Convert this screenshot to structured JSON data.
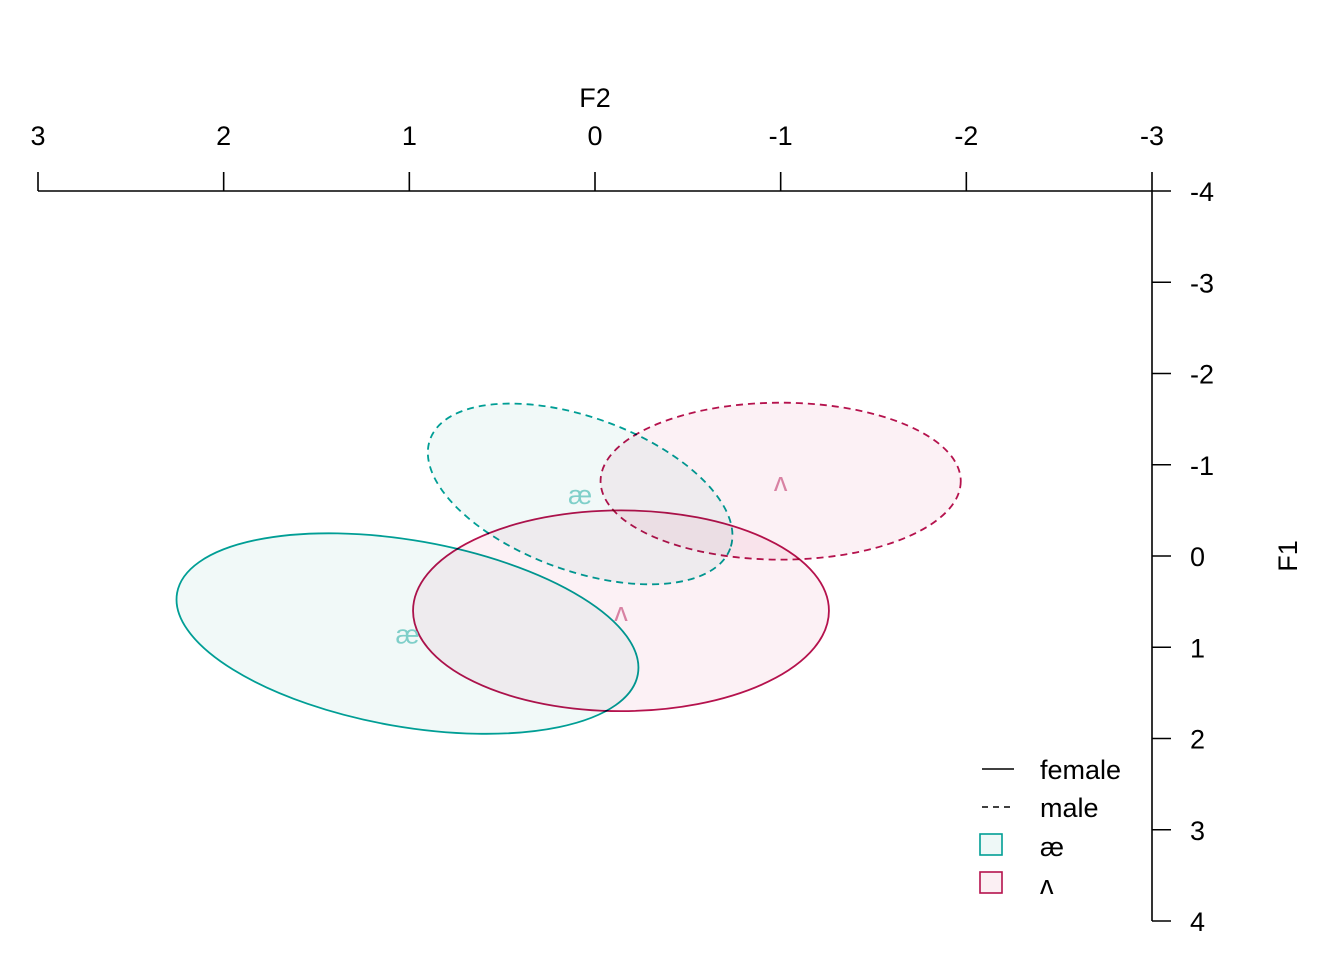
{
  "chart_data": {
    "type": "scatter",
    "title": "",
    "xlabel": "F2",
    "ylabel": "F1",
    "x_axis_position": "top",
    "y_axis_position": "right",
    "x_reversed": true,
    "y_reversed": true,
    "xlim": [
      3,
      -3
    ],
    "ylim": [
      -4,
      4
    ],
    "x_ticks": [
      3,
      2,
      1,
      0,
      -1,
      -2,
      -3
    ],
    "x_tick_labels": [
      "3",
      "2",
      "1",
      "0",
      "-1",
      "-2",
      "-3"
    ],
    "y_ticks": [
      -4,
      -3,
      -2,
      -1,
      0,
      1,
      2,
      3,
      4
    ],
    "y_tick_labels": [
      "-4",
      "-3",
      "-2",
      "-1",
      "0",
      "1",
      "2",
      "3",
      "4"
    ],
    "grid": false,
    "legend_position": "bottom-right",
    "legend": {
      "line_entries": [
        {
          "label": "female",
          "dash": "solid"
        },
        {
          "label": "male",
          "dash": "dashed"
        }
      ],
      "fill_entries": [
        {
          "label": "æ",
          "color": "#009E95"
        },
        {
          "label": "ʌ",
          "color": "#B5124D"
        }
      ]
    },
    "colors": {
      "ae": "#009E95",
      "ae_fill": "#EEF8F7",
      "ae_label": "#7FCFC9",
      "wedge": "#B5124D",
      "wedge_fill": "#FBEFF3",
      "wedge_label": "#D882A3"
    },
    "series": [
      {
        "vowel": "æ",
        "sex": "male",
        "centroid": [
          0.08,
          -0.68
        ],
        "rx": 0.86,
        "ry": 0.84,
        "angle": -20,
        "dash": "dashed",
        "color": "#009E95"
      },
      {
        "vowel": "ʌ",
        "sex": "male",
        "centroid": [
          -1.0,
          -0.82
        ],
        "rx": 0.97,
        "ry": 0.86,
        "angle": 0,
        "dash": "dashed",
        "color": "#B5124D"
      },
      {
        "vowel": "æ",
        "sex": "female",
        "centroid": [
          1.01,
          0.85
        ],
        "rx": 1.26,
        "ry": 1.02,
        "angle": -10,
        "dash": "solid",
        "color": "#009E95"
      },
      {
        "vowel": "ʌ",
        "sex": "female",
        "centroid": [
          -0.14,
          0.6
        ],
        "rx": 1.12,
        "ry": 1.1,
        "angle": 0,
        "dash": "solid",
        "color": "#B5124D"
      }
    ]
  }
}
